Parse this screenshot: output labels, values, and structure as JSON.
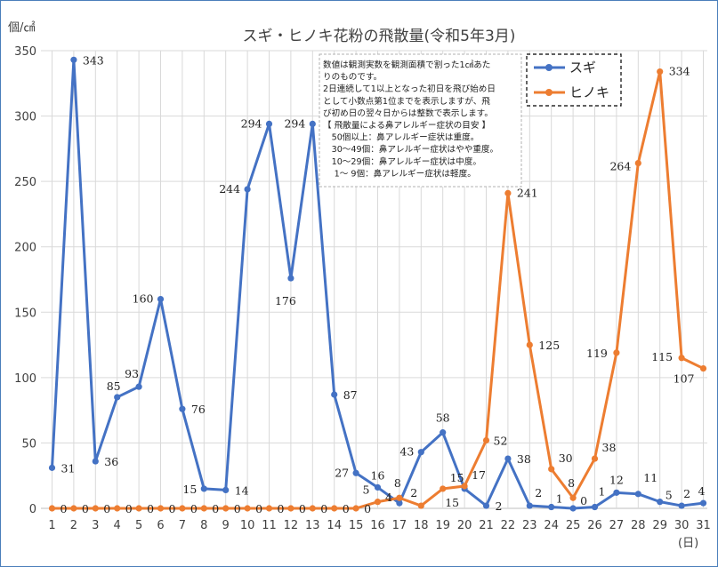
{
  "chart_data": {
    "type": "line",
    "title": "スギ・ヒノキ花粉の飛散量(令和5年3月)",
    "ylabel": "個/㎠",
    "xlabel": "(日)",
    "ylim": [
      0,
      350
    ],
    "yticks": [
      0,
      50,
      100,
      150,
      200,
      250,
      300,
      350
    ],
    "x": [
      1,
      2,
      3,
      4,
      5,
      6,
      7,
      8,
      9,
      10,
      11,
      12,
      13,
      14,
      15,
      16,
      17,
      18,
      19,
      20,
      21,
      22,
      23,
      24,
      25,
      26,
      27,
      28,
      29,
      30,
      31
    ],
    "grid": true,
    "legend_position": "top-right",
    "series": [
      {
        "name": "スギ",
        "color": "#4472c4",
        "values": [
          31,
          343,
          36,
          85,
          93,
          160,
          76,
          15,
          14,
          244,
          294,
          176,
          294,
          87,
          27,
          16,
          4,
          43,
          58,
          15,
          2,
          38,
          2,
          1,
          0,
          1,
          12,
          11,
          5,
          2,
          4
        ],
        "labels": [
          "31",
          "343",
          "36",
          "85",
          "93",
          "160",
          "76",
          "15",
          "14",
          "244",
          "294",
          "176",
          "294",
          "87",
          "27",
          "16",
          "4",
          "43",
          "58",
          "15",
          "2",
          "38",
          "2",
          "1",
          "0",
          "1",
          "12",
          "11",
          "5",
          "2",
          "4"
        ]
      },
      {
        "name": "ヒノキ",
        "color": "#ed7d31",
        "values": [
          0,
          0,
          0,
          0,
          0,
          0,
          0,
          0,
          0,
          0,
          0,
          0,
          0,
          0,
          0,
          5,
          8,
          2,
          15,
          17,
          52,
          241,
          125,
          30,
          8,
          38,
          119,
          264,
          334,
          115,
          107
        ],
        "labels": [
          "0",
          "0",
          "0",
          "0",
          "0",
          "0",
          "0",
          "0",
          "0",
          "0",
          "0",
          "0",
          "0",
          "0",
          "0",
          "5",
          "8",
          "2",
          "15",
          "17",
          "52",
          "241",
          "125",
          "30",
          "8",
          "38",
          "119",
          "264",
          "334",
          "115",
          "107"
        ]
      }
    ],
    "annotation_lines": [
      "数値は観測実数を観測面積で割った1㎠あた",
      "りのものです。",
      "2日連続して1以上となった初日を飛び始め日",
      "として小数点第1位までを表示しますが、飛",
      "び初め日の翌々日からは整数で表示します。",
      "【 飛散量による鼻アレルギー症状の目安 】",
      "　50個以上：鼻アレルギー症状は重度。",
      "　30～49個：鼻アレルギー症状はやや重度。",
      "　10～29個：鼻アレルギー症状は中度。",
      "　 1～ 9個：鼻アレルギー症状は軽度。"
    ]
  }
}
